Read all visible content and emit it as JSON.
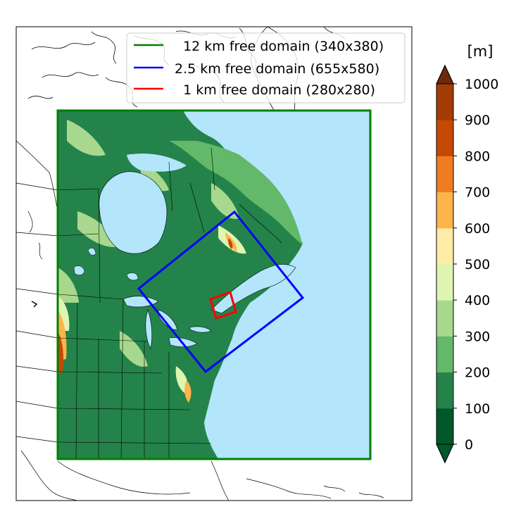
{
  "legend": {
    "items": [
      {
        "label": "  12 km free domain (340x380)",
        "color": "#008000"
      },
      {
        "label": "2.5 km free domain (655x580)",
        "color": "#0000ff"
      },
      {
        "label": "  1 km free domain (280x280)",
        "color": "#ff0000"
      }
    ]
  },
  "colorbar": {
    "unit": "[m]",
    "ticks": [
      "0",
      "100",
      "200",
      "300",
      "400",
      "500",
      "600",
      "700",
      "800",
      "900",
      "1000"
    ],
    "colors": [
      "#00582a",
      "#24834a",
      "#63b869",
      "#a8d88e",
      "#e0f5b2",
      "#feeba6",
      "#fdb44b",
      "#f07c22",
      "#c64903",
      "#a43b05"
    ],
    "extend_low_color": "#00582a",
    "extend_high_color": "#6d2a0a"
  },
  "map": {
    "ocean_color": "#b3e5fb",
    "land_low_color": "#24834a",
    "land_mid_color": "#63b869",
    "land_hi_color": "#a8d88e"
  }
}
